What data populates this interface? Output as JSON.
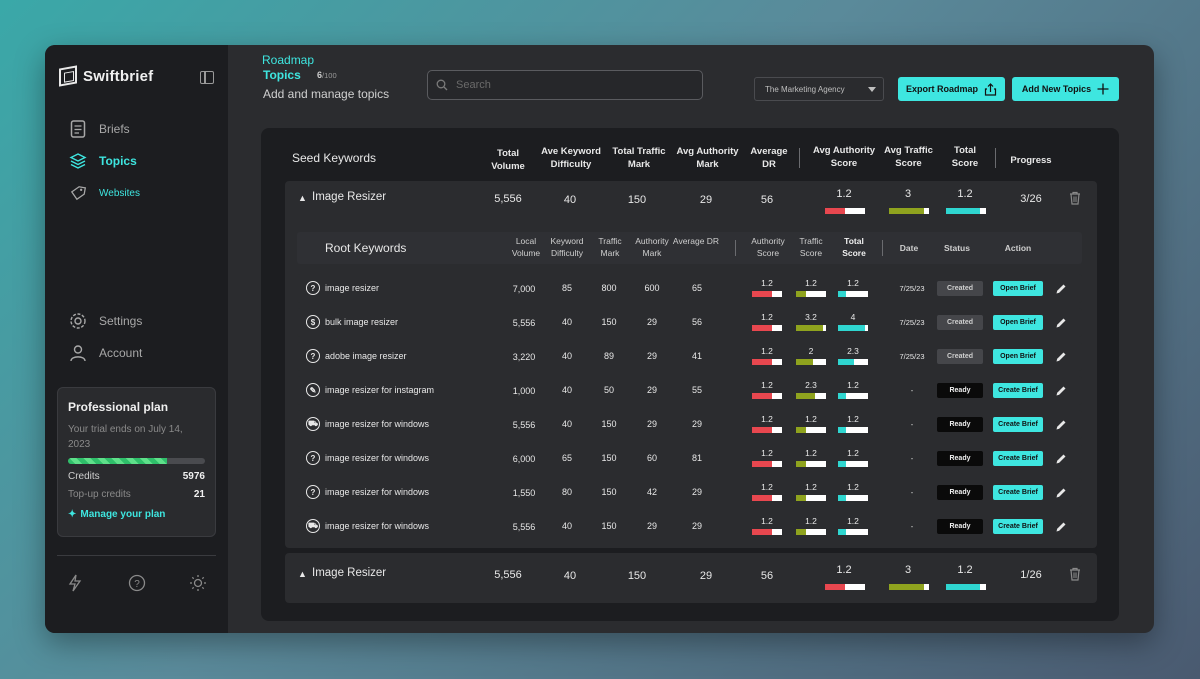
{
  "app": {
    "name": "Swiftbrief"
  },
  "sidebar": {
    "items": [
      {
        "label": "Briefs"
      },
      {
        "label": "Topics"
      },
      {
        "label": "Websites"
      },
      {
        "label": "Settings"
      },
      {
        "label": "Account"
      }
    ],
    "plan": {
      "title": "Professional plan",
      "subtitle": "Your trial ends on July 14, 2023",
      "progress_percent": 72,
      "credits_label": "Credits",
      "credits_value": "5976",
      "topup_label": "Top-up credits",
      "topup_value": "21",
      "manage_label": "Manage your plan"
    }
  },
  "header": {
    "breadcrumb": "Roadmap",
    "title": "Topics",
    "count": "6",
    "count_total": "/100",
    "subtitle": "Add and manage topics",
    "search_placeholder": "Search",
    "agency": "The Marketing Agency",
    "export_label": "Export Roadmap",
    "add_label": "Add New Topics"
  },
  "seed_table": {
    "title": "Seed Keywords",
    "columns": [
      "Total Volume",
      "Ave Keyword Difficulty",
      "Total Traffic Mark",
      "Avg Authority Mark",
      "Average DR",
      "Avg Authority Score",
      "Avg Traffic Score",
      "Total Score",
      "Progress"
    ],
    "topics": [
      {
        "name": "Image Resizer",
        "volume": "5,556",
        "difficulty": "40",
        "traffic": "150",
        "authority": "29",
        "dr": "56",
        "auth_score": "1.2",
        "traffic_score": "3",
        "total_score": "1.2",
        "progress": "3/26"
      },
      {
        "name": "Image Resizer",
        "volume": "5,556",
        "difficulty": "40",
        "traffic": "150",
        "authority": "29",
        "dr": "56",
        "auth_score": "1.2",
        "traffic_score": "3",
        "total_score": "1.2",
        "progress": "1/26"
      }
    ]
  },
  "root_table": {
    "title": "Root Keywords",
    "columns": [
      "Local Volume",
      "Keyword Difficulty",
      "Traffic Mark",
      "Authority Mark",
      "Average DR",
      "Authority Score",
      "Traffic Score",
      "Total Score",
      "Date",
      "Status",
      "Action"
    ],
    "rows": [
      {
        "icon": "?",
        "keyword": "image resizer",
        "volume": "7,000",
        "difficulty": "85",
        "traffic": "800",
        "authority": "600",
        "dr": "65",
        "a_score": "1.2",
        "t_score": "1.2",
        "total": "1.2",
        "date": "7/25/23",
        "status": "Created",
        "action": "Open Brief"
      },
      {
        "icon": "$",
        "keyword": "bulk image resizer",
        "volume": "5,556",
        "difficulty": "40",
        "traffic": "150",
        "authority": "29",
        "dr": "56",
        "a_score": "1.2",
        "t_score": "3.2",
        "total": "4",
        "date": "7/25/23",
        "status": "Created",
        "action": "Open Brief"
      },
      {
        "icon": "?",
        "keyword": "adobe image resizer",
        "volume": "3,220",
        "difficulty": "40",
        "traffic": "89",
        "authority": "29",
        "dr": "41",
        "a_score": "1.2",
        "t_score": "2",
        "total": "2.3",
        "date": "7/25/23",
        "status": "Created",
        "action": "Open Brief"
      },
      {
        "icon": "✎",
        "keyword": "image resizer for instagram",
        "volume": "1,000",
        "difficulty": "40",
        "traffic": "50",
        "authority": "29",
        "dr": "55",
        "a_score": "1.2",
        "t_score": "2.3",
        "total": "1.2",
        "date": "-",
        "status": "Ready",
        "action": "Create Brief"
      },
      {
        "icon": "⛟",
        "keyword": "image resizer for windows",
        "volume": "5,556",
        "difficulty": "40",
        "traffic": "150",
        "authority": "29",
        "dr": "29",
        "a_score": "1.2",
        "t_score": "1.2",
        "total": "1.2",
        "date": "-",
        "status": "Ready",
        "action": "Create Brief"
      },
      {
        "icon": "?",
        "keyword": "image resizer for windows",
        "volume": "6,000",
        "difficulty": "65",
        "traffic": "150",
        "authority": "60",
        "dr": "81",
        "a_score": "1.2",
        "t_score": "1.2",
        "total": "1.2",
        "date": "-",
        "status": "Ready",
        "action": "Create Brief"
      },
      {
        "icon": "?",
        "keyword": "image resizer for windows",
        "volume": "1,550",
        "difficulty": "80",
        "traffic": "150",
        "authority": "42",
        "dr": "29",
        "a_score": "1.2",
        "t_score": "1.2",
        "total": "1.2",
        "date": "-",
        "status": "Ready",
        "action": "Create Brief"
      },
      {
        "icon": "⛟",
        "keyword": "image resizer for windows",
        "volume": "5,556",
        "difficulty": "40",
        "traffic": "150",
        "authority": "29",
        "dr": "29",
        "a_score": "1.2",
        "t_score": "1.2",
        "total": "1.2",
        "date": "-",
        "status": "Ready",
        "action": "Create Brief"
      }
    ]
  },
  "colors": {
    "accent": "#3ee6e0",
    "authority_bar": "#e8474f",
    "traffic_bar": "#8fa31e",
    "total_bar": "#2fd6d0"
  }
}
